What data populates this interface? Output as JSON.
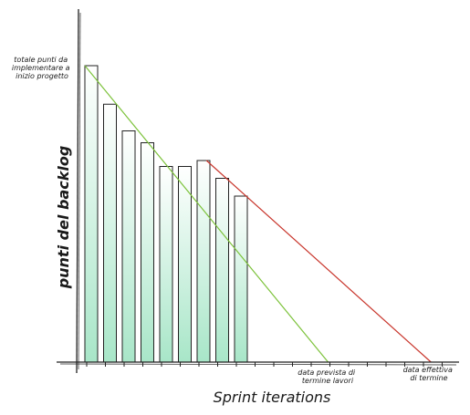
{
  "annotations": {
    "top_note": [
      "totale punti da",
      "implementare a",
      "inizio progetto"
    ],
    "planned_end": [
      "data prevista di",
      "termine lavori"
    ],
    "actual_end": [
      "data effettiva",
      "di termine"
    ]
  },
  "chart_data": {
    "type": "bar",
    "title": "",
    "xlabel": "Sprint iterations",
    "ylabel": "punti del backlog",
    "values": [
      100,
      87,
      78,
      74,
      66,
      66,
      68,
      62,
      56
    ],
    "ylim": [
      0,
      100
    ],
    "ideal_line": {
      "start": [
        0,
        100
      ],
      "end": [
        13,
        0
      ],
      "color": "#7cc23a"
    },
    "forecast_line": {
      "start": [
        6.5,
        68
      ],
      "end": [
        18.5,
        0
      ],
      "color": "#c8352b"
    },
    "x_range": [
      0,
      20
    ],
    "colors": {
      "bar_top": "#ffffff",
      "bar_bottom": "#a8e6c8",
      "stroke": "#222222"
    }
  }
}
